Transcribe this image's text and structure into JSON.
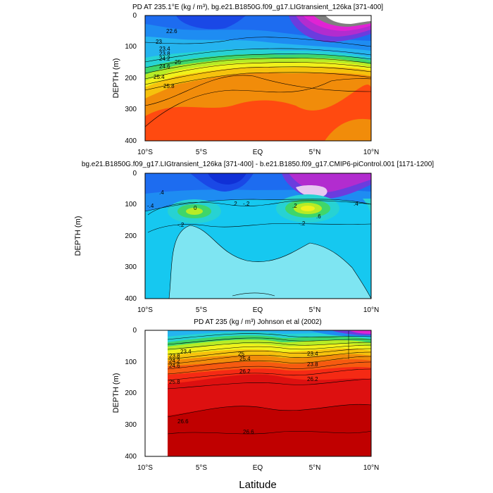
{
  "chart_data": [
    {
      "type": "contour",
      "title": "PD AT 235.1°E (kg / m³), bg.e21.B1850G.f09_g17.LIGtransient_126ka [371-400]",
      "ylabel": "DEPTH (m)",
      "xlim": [
        -10,
        10
      ],
      "ylim": [
        400,
        0
      ],
      "x_ticks": [
        "10°S",
        "5°S",
        "EQ",
        "5°N",
        "10°N"
      ],
      "y_ticks": [
        "0",
        "100",
        "200",
        "300",
        "400"
      ],
      "contour_labels": [
        "22.6",
        "23",
        "23.4",
        "23.8",
        "24.2",
        "24.6",
        "25",
        "25.4",
        "25.8"
      ]
    },
    {
      "type": "contour",
      "title": "bg.e21.B1850G.f09_g17.LIGtransient_126ka [371-400] - b.e21.B1850.f09_g17.CMIP6-piControl.001 [1171-1200]",
      "ylabel": "DEPTH (m)",
      "xlim": [
        -10,
        10
      ],
      "ylim": [
        400,
        0
      ],
      "x_ticks": [
        "10°S",
        "5°S",
        "EQ",
        "5°N",
        "10°N"
      ],
      "y_ticks": [
        "0",
        "100",
        "200",
        "300",
        "400"
      ],
      "contour_labels": [
        ".4",
        "-.4",
        "-.2",
        ".2",
        "0",
        ".6",
        ".2",
        ".4",
        "-.2",
        "-.2"
      ]
    },
    {
      "type": "contour",
      "title": "PD AT 235 (kg / m³) Johnson et al (2002)",
      "ylabel": "DEPTH (m)",
      "xlabel": "Latitude",
      "xlim": [
        -10,
        10
      ],
      "ylim": [
        400,
        0
      ],
      "x_ticks": [
        "10°S",
        "5°S",
        "EQ",
        "5°N",
        "10°N"
      ],
      "y_ticks": [
        "0",
        "100",
        "200",
        "300",
        "400"
      ],
      "data_x_range": [
        -8,
        10
      ],
      "contour_labels": [
        "23.4",
        "23.8",
        "24.2",
        "24.6",
        "25",
        "25.4",
        "25.8",
        "26.2",
        "26.6",
        "23.4",
        "23.8",
        "26.2",
        "26.6"
      ]
    }
  ]
}
